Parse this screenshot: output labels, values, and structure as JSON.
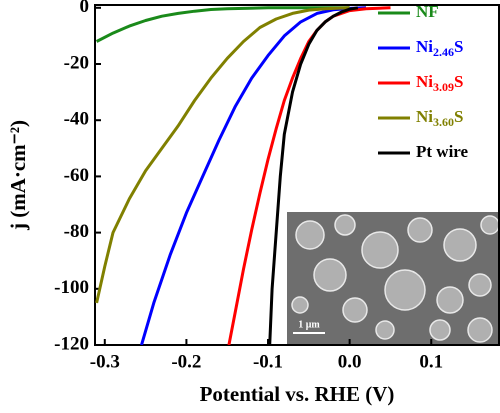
{
  "chart_data": {
    "type": "line",
    "xlabel": "Potential vs. RHE (V)",
    "ylabel": "j (mA·cm⁻²)",
    "xlim": [
      -0.312,
      0.183
    ],
    "ylim": [
      -120,
      1
    ],
    "xticks": [
      -0.3,
      -0.2,
      -0.1,
      {
        "value": 0,
        "label": "0.0"
      },
      0.1
    ],
    "yticks": [
      0,
      -20,
      -40,
      -60,
      -80,
      -100,
      -120
    ],
    "legend": "upper right",
    "inset_label": "1 μm",
    "series": [
      {
        "name": "NF",
        "color": "#1a8a1a",
        "x": [
          -0.31,
          -0.29,
          -0.27,
          -0.25,
          -0.23,
          -0.21,
          -0.19,
          -0.17,
          -0.15,
          -0.1,
          0.0
        ],
        "values": [
          -12,
          -9,
          -6.5,
          -4.5,
          -3,
          -2,
          -1.2,
          -0.6,
          -0.3,
          0,
          0
        ]
      },
      {
        "name": "Ni2.46S",
        "color": "#0000ff",
        "x": [
          -0.255,
          -0.24,
          -0.22,
          -0.2,
          -0.18,
          -0.16,
          -0.14,
          -0.12,
          -0.1,
          -0.08,
          -0.06,
          -0.04,
          -0.02,
          0.0,
          0.02
        ],
        "values": [
          -120,
          -105,
          -88,
          -73,
          -60,
          -47,
          -35,
          -25,
          -17,
          -10,
          -5,
          -2,
          -0.7,
          -0.2,
          0
        ]
      },
      {
        "name": "Ni3.09S",
        "color": "#ff0000",
        "x": [
          -0.148,
          -0.14,
          -0.13,
          -0.12,
          -0.11,
          -0.1,
          -0.09,
          -0.08,
          -0.07,
          -0.06,
          -0.05,
          -0.04,
          -0.03,
          -0.02,
          0.0,
          0.02,
          0.05
        ],
        "values": [
          -120,
          -108,
          -93,
          -79,
          -66,
          -54,
          -43,
          -33,
          -25,
          -18,
          -12,
          -8,
          -5,
          -3,
          -1,
          -0.3,
          0
        ]
      },
      {
        "name": "Ni3.60S",
        "color": "#808000",
        "x": [
          -0.31,
          -0.3,
          -0.29,
          -0.27,
          -0.25,
          -0.23,
          -0.21,
          -0.19,
          -0.17,
          -0.15,
          -0.13,
          -0.11,
          -0.09,
          -0.07,
          -0.05,
          -0.03,
          0.0
        ],
        "values": [
          -105,
          -92,
          -80,
          -68,
          -58,
          -50,
          -42,
          -33,
          -25,
          -18,
          -12,
          -7,
          -4,
          -2,
          -0.8,
          -0.3,
          0
        ]
      },
      {
        "name": "Pt wire",
        "color": "#000000",
        "x": [
          -0.098,
          -0.095,
          -0.09,
          -0.085,
          -0.08,
          -0.07,
          -0.06,
          -0.05,
          -0.04,
          -0.03,
          -0.02,
          -0.01,
          0.0,
          0.01
        ],
        "values": [
          -120,
          -100,
          -80,
          -60,
          -45,
          -30,
          -20,
          -13,
          -8,
          -5,
          -3,
          -1.5,
          -0.5,
          0
        ]
      }
    ]
  }
}
